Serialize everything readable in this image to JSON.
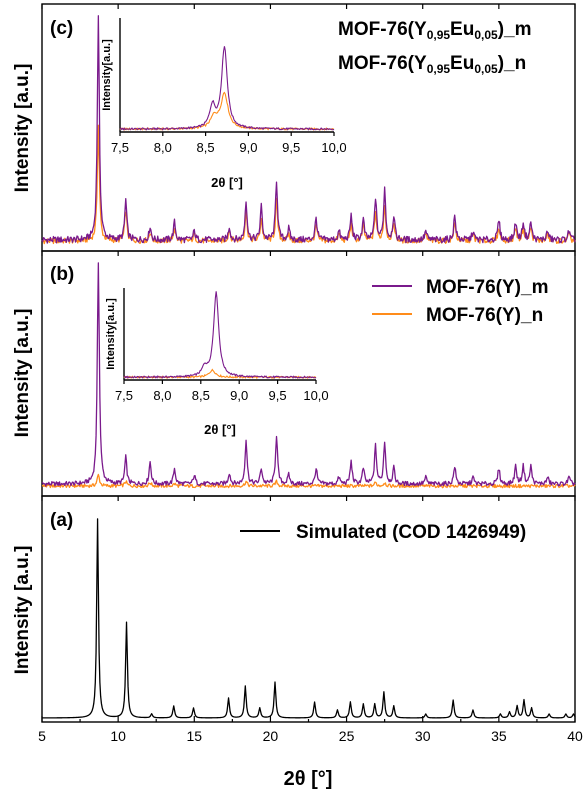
{
  "figure": {
    "x_axis_label": "2θ [°]",
    "y_axis_label": "Intensity [a.u.]",
    "x_ticks": [
      "5",
      "10",
      "15",
      "20",
      "25",
      "30",
      "35",
      "40"
    ],
    "inset_x_label": "2θ [°]",
    "inset_y_label": "Intensity[a.u.]",
    "inset_ticks": [
      "7,5",
      "8,0",
      "8,5",
      "9,0",
      "9,5",
      "10,0"
    ]
  },
  "colors": {
    "m": "#7a1a8c",
    "n": "#ff8c1a",
    "sim": "#000000"
  },
  "chart_data": [
    {
      "type": "line",
      "panel_label": "(c)",
      "x_range": [
        5,
        40
      ],
      "legend_placement": "top-right",
      "series": [
        {
          "name_main": "MOF-76(Y",
          "name_sub1": "0,95",
          "name_mid": "Eu",
          "name_sub2": "0,05",
          "name_end": ")_m",
          "color": "#7a1a8c",
          "peaks": [
            [
              8.7,
              1.0
            ],
            [
              10.5,
              0.18
            ],
            [
              12.1,
              0.06
            ],
            [
              13.7,
              0.08
            ],
            [
              15.0,
              0.04
            ],
            [
              17.3,
              0.06
            ],
            [
              18.4,
              0.18
            ],
            [
              19.4,
              0.15
            ],
            [
              20.4,
              0.27
            ],
            [
              21.2,
              0.05
            ],
            [
              23.0,
              0.1
            ],
            [
              24.5,
              0.04
            ],
            [
              25.3,
              0.11
            ],
            [
              26.1,
              0.09
            ],
            [
              26.9,
              0.19
            ],
            [
              27.5,
              0.23
            ],
            [
              28.1,
              0.11
            ],
            [
              30.2,
              0.04
            ],
            [
              32.1,
              0.11
            ],
            [
              33.3,
              0.04
            ],
            [
              35.0,
              0.09
            ],
            [
              36.1,
              0.08
            ],
            [
              36.6,
              0.08
            ],
            [
              37.1,
              0.08
            ],
            [
              38.2,
              0.04
            ],
            [
              39.6,
              0.04
            ]
          ]
        },
        {
          "name_main": "MOF-76(Y",
          "name_sub1": "0,95",
          "name_mid": "Eu",
          "name_sub2": "0,05",
          "name_end": ")_n",
          "color": "#ff8c1a",
          "peaks": [
            [
              8.7,
              0.52
            ],
            [
              10.5,
              0.14
            ],
            [
              12.1,
              0.04
            ],
            [
              13.7,
              0.06
            ],
            [
              15.0,
              0.03
            ],
            [
              17.3,
              0.05
            ],
            [
              18.4,
              0.13
            ],
            [
              19.4,
              0.1
            ],
            [
              20.4,
              0.18
            ],
            [
              21.2,
              0.03
            ],
            [
              23.0,
              0.07
            ],
            [
              24.5,
              0.03
            ],
            [
              25.3,
              0.08
            ],
            [
              26.1,
              0.07
            ],
            [
              26.9,
              0.13
            ],
            [
              27.5,
              0.16
            ],
            [
              28.1,
              0.08
            ],
            [
              30.2,
              0.03
            ],
            [
              32.1,
              0.08
            ],
            [
              33.3,
              0.03
            ],
            [
              35.0,
              0.06
            ],
            [
              36.1,
              0.06
            ],
            [
              36.6,
              0.06
            ],
            [
              37.1,
              0.06
            ],
            [
              38.2,
              0.03
            ],
            [
              39.6,
              0.03
            ]
          ]
        }
      ],
      "inset": {
        "x_range": [
          7.5,
          10.0
        ],
        "m_peaks": [
          [
            8.58,
            0.23
          ],
          [
            8.72,
            0.86
          ]
        ],
        "n_peaks": [
          [
            8.6,
            0.12
          ],
          [
            8.72,
            0.37
          ]
        ]
      }
    },
    {
      "type": "line",
      "panel_label": "(b)",
      "x_range": [
        5,
        40
      ],
      "legend_placement": "top-right",
      "series": [
        {
          "name": "MOF-76(Y)_m",
          "color": "#7a1a8c",
          "peaks": [
            [
              8.7,
              1.0
            ],
            [
              10.5,
              0.12
            ],
            [
              12.1,
              0.1
            ],
            [
              13.7,
              0.07
            ],
            [
              15.0,
              0.04
            ],
            [
              17.3,
              0.05
            ],
            [
              18.4,
              0.2
            ],
            [
              19.4,
              0.07
            ],
            [
              20.4,
              0.22
            ],
            [
              21.2,
              0.04
            ],
            [
              23.0,
              0.07
            ],
            [
              24.5,
              0.03
            ],
            [
              25.3,
              0.1
            ],
            [
              26.1,
              0.07
            ],
            [
              26.9,
              0.17
            ],
            [
              27.5,
              0.19
            ],
            [
              28.1,
              0.07
            ],
            [
              30.2,
              0.03
            ],
            [
              32.1,
              0.08
            ],
            [
              33.3,
              0.03
            ],
            [
              35.0,
              0.07
            ],
            [
              36.1,
              0.08
            ],
            [
              36.6,
              0.08
            ],
            [
              37.1,
              0.08
            ],
            [
              38.2,
              0.03
            ],
            [
              39.6,
              0.03
            ]
          ]
        },
        {
          "name": "MOF-76(Y)_n",
          "color": "#ff8c1a",
          "peaks": [
            [
              8.7,
              0.05
            ],
            [
              10.5,
              0.02
            ],
            [
              12.1,
              0.015
            ],
            [
              13.7,
              0.01
            ],
            [
              18.4,
              0.02
            ],
            [
              20.4,
              0.02
            ],
            [
              26.9,
              0.015
            ],
            [
              27.5,
              0.015
            ]
          ]
        }
      ],
      "inset": {
        "x_range": [
          7.5,
          10.0
        ],
        "m_peaks": [
          [
            8.55,
            0.1
          ],
          [
            8.7,
            0.96
          ]
        ],
        "n_peaks": [
          [
            8.65,
            0.08
          ]
        ]
      }
    },
    {
      "type": "line",
      "panel_label": "(a)",
      "x_range": [
        5,
        40
      ],
      "legend_placement": "top-right",
      "series": [
        {
          "name": "Simulated (COD 1426949)",
          "color": "#000000",
          "peaks": [
            [
              8.65,
              1.0
            ],
            [
              10.55,
              0.48
            ],
            [
              12.2,
              0.02
            ],
            [
              13.65,
              0.06
            ],
            [
              14.95,
              0.05
            ],
            [
              17.25,
              0.1
            ],
            [
              18.35,
              0.16
            ],
            [
              19.3,
              0.05
            ],
            [
              20.3,
              0.18
            ],
            [
              22.9,
              0.08
            ],
            [
              24.4,
              0.04
            ],
            [
              25.25,
              0.08
            ],
            [
              26.1,
              0.07
            ],
            [
              26.85,
              0.07
            ],
            [
              27.45,
              0.13
            ],
            [
              28.1,
              0.06
            ],
            [
              30.2,
              0.02
            ],
            [
              32.0,
              0.09
            ],
            [
              33.3,
              0.04
            ],
            [
              35.1,
              0.02
            ],
            [
              35.7,
              0.03
            ],
            [
              36.2,
              0.06
            ],
            [
              36.65,
              0.09
            ],
            [
              37.15,
              0.05
            ],
            [
              38.3,
              0.02
            ],
            [
              39.4,
              0.02
            ],
            [
              39.9,
              0.02
            ]
          ]
        }
      ]
    }
  ]
}
